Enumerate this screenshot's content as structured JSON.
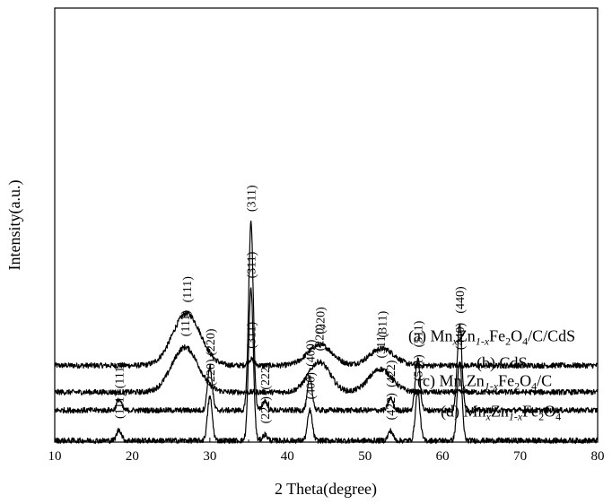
{
  "chart_data": {
    "type": "line",
    "xlabel": "2 Theta(degree)",
    "ylabel": "Intensity(a.u.)",
    "xlim": [
      10,
      80
    ],
    "xticks": [
      10,
      20,
      30,
      40,
      50,
      60,
      70,
      80
    ],
    "yticks_shown": false,
    "grid": false,
    "legend_position": "right of each trace",
    "series": [
      {
        "legend": [
          "(a) Mn",
          "x",
          "Zn",
          "1-x",
          "Fe",
          "2",
          "O",
          "4",
          "/C/CdS"
        ],
        "baseline": 0.87,
        "peaks": [
          {
            "x": 27.0,
            "height": 0.43,
            "width": 1.8,
            "label": "(111)"
          },
          {
            "x": 35.3,
            "height": 0.05,
            "width": 0.4,
            "label": "(311)"
          },
          {
            "x": 44.2,
            "height": 0.17,
            "width": 1.6,
            "label": "(220)"
          },
          {
            "x": 52.2,
            "height": 0.14,
            "width": 1.6,
            "label": "(311)"
          }
        ]
      },
      {
        "legend": [
          "(b) CdS"
        ],
        "baseline": 0.65,
        "peaks": [
          {
            "x": 26.8,
            "height": 0.37,
            "width": 1.7,
            "label": "(111)"
          },
          {
            "x": 44.1,
            "height": 0.25,
            "width": 1.4,
            "label": "(220)"
          },
          {
            "x": 52.0,
            "height": 0.19,
            "width": 1.5,
            "label": "(311)"
          }
        ]
      },
      {
        "legend": [
          "(c) Mn",
          "x",
          "Zn",
          "1-x",
          "Fe",
          "2",
          "O",
          "4",
          "/C"
        ],
        "baseline": 0.5,
        "peaks": [
          {
            "x": 18.3,
            "height": 0.09,
            "width": 0.3,
            "label": "(111)"
          },
          {
            "x": 30.0,
            "height": 0.36,
            "width": 0.3,
            "label": "(220)"
          },
          {
            "x": 35.3,
            "height": 1.55,
            "width": 0.3,
            "label": "(311)"
          },
          {
            "x": 37.1,
            "height": 0.08,
            "width": 0.3,
            "label": "(222)"
          },
          {
            "x": 42.9,
            "height": 0.27,
            "width": 0.3,
            "label": "(400)"
          },
          {
            "x": 53.3,
            "height": 0.1,
            "width": 0.3,
            "label": "(422)"
          },
          {
            "x": 56.8,
            "height": 0.43,
            "width": 0.3,
            "label": "(511)"
          },
          {
            "x": 62.2,
            "height": 0.71,
            "width": 0.3,
            "label": "(440)"
          }
        ]
      },
      {
        "legend": [
          "(d) Mn",
          "x",
          "Zn",
          "1-x",
          "Fe",
          "2",
          "O",
          "4"
        ],
        "baseline": 0.25,
        "peaks": [
          {
            "x": 18.3,
            "height": 0.09,
            "width": 0.3,
            "label": "(111)"
          },
          {
            "x": 30.0,
            "height": 0.36,
            "width": 0.3,
            "label": "(220)"
          },
          {
            "x": 35.3,
            "height": 1.25,
            "width": 0.3,
            "label": "(311)"
          },
          {
            "x": 37.1,
            "height": 0.05,
            "width": 0.3,
            "label": "(222)"
          },
          {
            "x": 42.9,
            "height": 0.25,
            "width": 0.3,
            "label": "(400)"
          },
          {
            "x": 53.3,
            "height": 0.08,
            "width": 0.3,
            "label": "(422)"
          },
          {
            "x": 56.8,
            "height": 0.4,
            "width": 0.3,
            "label": "(511)"
          },
          {
            "x": 62.2,
            "height": 0.66,
            "width": 0.3,
            "label": "(440)"
          }
        ]
      }
    ]
  }
}
